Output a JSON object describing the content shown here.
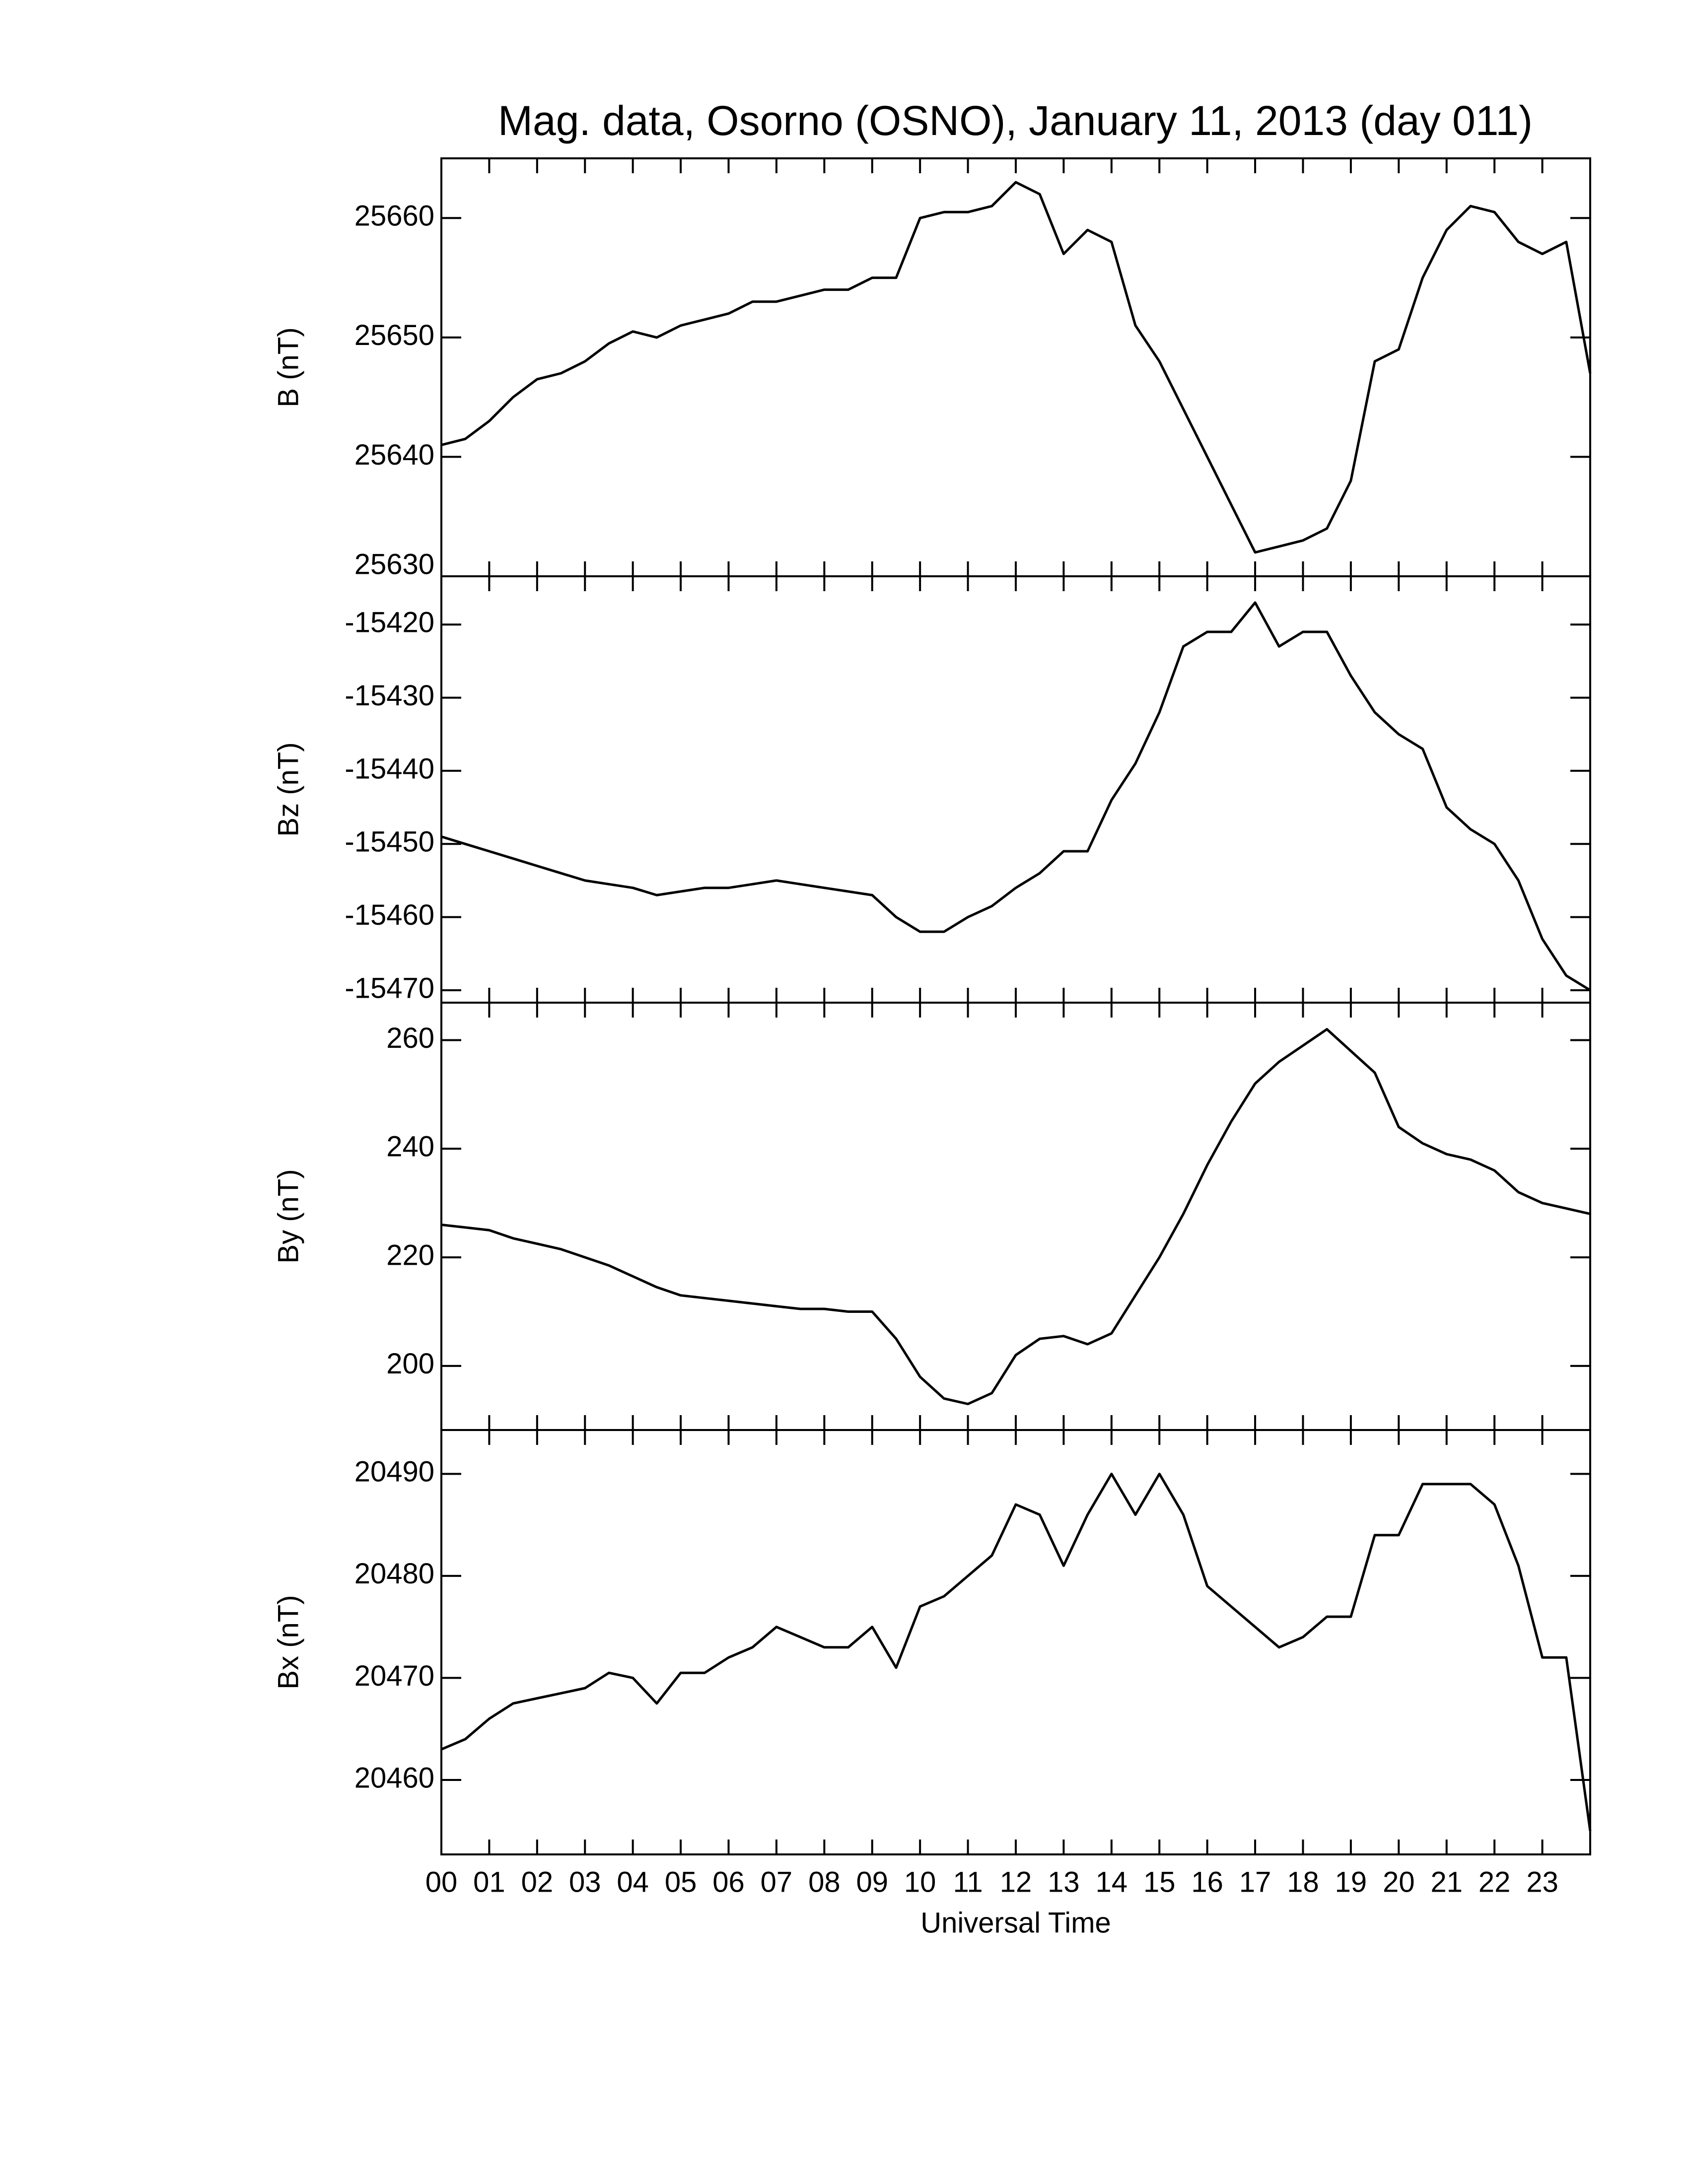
{
  "chart_data": [
    {
      "type": "line",
      "title": "Mag. data, Osorno (OSNO), January 11, 2013 (day 011)",
      "ylabel": "B (nT)",
      "color": "#000000",
      "x": [
        0,
        0.5,
        1,
        1.5,
        2,
        2.5,
        3,
        3.5,
        4,
        4.5,
        5,
        5.5,
        6,
        6.5,
        7,
        7.5,
        8,
        8.5,
        9,
        9.5,
        10,
        10.5,
        11,
        11.5,
        12,
        12.5,
        13,
        13.5,
        14,
        14.5,
        15,
        15.5,
        16,
        16.5,
        17,
        17.5,
        18,
        18.5,
        19,
        19.5,
        20,
        20.5,
        21,
        21.5,
        22,
        22.5,
        23,
        23.5,
        24
      ],
      "values": [
        25641,
        25641.5,
        25643,
        25645,
        25646.5,
        25647,
        25648,
        25649.5,
        25650.5,
        25650,
        25651,
        25651.5,
        25652,
        25653,
        25653,
        25653.5,
        25654,
        25654,
        25655,
        25655,
        25660,
        25660.5,
        25660.5,
        25661,
        25663,
        25662,
        25657,
        25659,
        25658,
        25651,
        25648,
        25644,
        25640,
        25636,
        25632,
        25632.5,
        25633,
        25634,
        25638,
        25648,
        25649,
        25655,
        25659,
        25661,
        25660.5,
        25658,
        25657,
        25658,
        25647
      ],
      "xlim": [
        0,
        24
      ],
      "xticks": [
        {
          "value": 0,
          "label": "00"
        },
        {
          "value": 1,
          "label": "01"
        },
        {
          "value": 2,
          "label": "02"
        },
        {
          "value": 3,
          "label": "03"
        },
        {
          "value": 4,
          "label": "04"
        },
        {
          "value": 5,
          "label": "05"
        },
        {
          "value": 6,
          "label": "06"
        },
        {
          "value": 7,
          "label": "07"
        },
        {
          "value": 8,
          "label": "08"
        },
        {
          "value": 9,
          "label": "09"
        },
        10,
        11,
        12,
        13,
        14,
        15,
        16,
        17,
        18,
        19,
        20,
        21,
        22,
        23
      ],
      "ylim": [
        25630,
        25665
      ],
      "yticks": [
        25630,
        25640,
        25650,
        25660
      ]
    },
    {
      "type": "line",
      "ylabel": "Bz (nT)",
      "color": "#000000",
      "x": [
        0,
        0.5,
        1,
        1.5,
        2,
        2.5,
        3,
        3.5,
        4,
        4.5,
        5,
        5.5,
        6,
        6.5,
        7,
        7.5,
        8,
        8.5,
        9,
        9.5,
        10,
        10.5,
        11,
        11.5,
        12,
        12.5,
        13,
        13.5,
        14,
        14.5,
        15,
        15.5,
        16,
        16.5,
        17,
        17.5,
        18,
        18.5,
        19,
        19.5,
        20,
        20.5,
        21,
        21.5,
        22,
        22.5,
        23,
        23.5,
        24
      ],
      "values": [
        -15449,
        -15450,
        -15451,
        -15452,
        -15453,
        -15454,
        -15455,
        -15455.5,
        -15456,
        -15457,
        -15456.5,
        -15456,
        -15456,
        -15455.5,
        -15455,
        -15455.5,
        -15456,
        -15456.5,
        -15457,
        -15460,
        -15462,
        -15462,
        -15460,
        -15458.5,
        -15456,
        -15454,
        -15451,
        -15451,
        -15444,
        -15439,
        -15432,
        -15423,
        -15421,
        -15421,
        -15417,
        -15423,
        -15421,
        -15421,
        -15427,
        -15432,
        -15435,
        -15437,
        -15445,
        -15448,
        -15450,
        -15455,
        -15463,
        -15468,
        -15470
      ],
      "xlim": [
        0,
        24
      ],
      "xticks": [
        {
          "value": 0,
          "label": "00"
        },
        {
          "value": 1,
          "label": "01"
        },
        {
          "value": 2,
          "label": "02"
        },
        {
          "value": 3,
          "label": "03"
        },
        {
          "value": 4,
          "label": "04"
        },
        {
          "value": 5,
          "label": "05"
        },
        {
          "value": 6,
          "label": "06"
        },
        {
          "value": 7,
          "label": "07"
        },
        {
          "value": 8,
          "label": "08"
        },
        {
          "value": 9,
          "label": "09"
        },
        10,
        11,
        12,
        13,
        14,
        15,
        16,
        17,
        18,
        19,
        20,
        21,
        22,
        23
      ],
      "ylim": [
        -15471.7,
        -15413.4
      ],
      "yticks": [
        -15470,
        -15460,
        -15450,
        -15440,
        -15430,
        -15420
      ]
    },
    {
      "type": "line",
      "ylabel": "By (nT)",
      "color": "#000000",
      "x": [
        0,
        0.5,
        1,
        1.5,
        2,
        2.5,
        3,
        3.5,
        4,
        4.5,
        5,
        5.5,
        6,
        6.5,
        7,
        7.5,
        8,
        8.5,
        9,
        9.5,
        10,
        10.5,
        11,
        11.5,
        12,
        12.5,
        13,
        13.5,
        14,
        14.5,
        15,
        15.5,
        16,
        16.5,
        17,
        17.5,
        18,
        18.5,
        19,
        19.5,
        20,
        20.5,
        21,
        21.5,
        22,
        22.5,
        23,
        23.5,
        24
      ],
      "values": [
        226,
        225.5,
        225,
        223.5,
        222.5,
        221.5,
        220,
        218.5,
        216.5,
        214.5,
        213,
        212.5,
        212,
        211.5,
        211,
        210.5,
        210.5,
        210,
        210,
        205,
        198,
        194,
        193,
        195,
        202,
        205,
        205.5,
        204,
        206,
        213,
        220,
        228,
        237,
        245,
        252,
        256,
        259,
        262,
        258,
        254,
        244,
        241,
        239,
        238,
        236,
        232,
        230,
        229,
        228
      ],
      "xlim": [
        0,
        24
      ],
      "xticks": [
        {
          "value": 0,
          "label": "00"
        },
        {
          "value": 1,
          "label": "01"
        },
        {
          "value": 2,
          "label": "02"
        },
        {
          "value": 3,
          "label": "03"
        },
        {
          "value": 4,
          "label": "04"
        },
        {
          "value": 5,
          "label": "05"
        },
        {
          "value": 6,
          "label": "06"
        },
        {
          "value": 7,
          "label": "07"
        },
        {
          "value": 8,
          "label": "08"
        },
        {
          "value": 9,
          "label": "09"
        },
        10,
        11,
        12,
        13,
        14,
        15,
        16,
        17,
        18,
        19,
        20,
        21,
        22,
        23
      ],
      "ylim": [
        188.2,
        266.9
      ],
      "yticks": [
        200,
        220,
        240,
        260
      ]
    },
    {
      "type": "line",
      "ylabel": "Bx (nT)",
      "xlabel": "Universal Time",
      "color": "#000000",
      "x": [
        0,
        0.5,
        1,
        1.5,
        2,
        2.5,
        3,
        3.5,
        4,
        4.5,
        5,
        5.5,
        6,
        6.5,
        7,
        7.5,
        8,
        8.5,
        9,
        9.5,
        10,
        10.5,
        11,
        11.5,
        12,
        12.5,
        13,
        13.5,
        14,
        14.5,
        15,
        15.5,
        16,
        16.5,
        17,
        17.5,
        18,
        18.5,
        19,
        19.5,
        20,
        20.5,
        21,
        21.5,
        22,
        22.5,
        23,
        23.5,
        24
      ],
      "values": [
        20463,
        20464,
        20466,
        20467.5,
        20468,
        20468.5,
        20469,
        20470.5,
        20470,
        20467.5,
        20470.5,
        20470.5,
        20472,
        20473,
        20475,
        20474,
        20473,
        20473,
        20475,
        20471,
        20477,
        20478,
        20480,
        20482,
        20487,
        20486,
        20481,
        20486,
        20490,
        20486,
        20490,
        20486,
        20479,
        20477,
        20475,
        20473,
        20474,
        20476,
        20476,
        20484,
        20484,
        20489,
        20489,
        20489,
        20487,
        20481,
        20472,
        20472,
        20455
      ],
      "xlim": [
        0,
        24
      ],
      "xticks": [
        {
          "value": 0,
          "label": "00"
        },
        {
          "value": 1,
          "label": "01"
        },
        {
          "value": 2,
          "label": "02"
        },
        {
          "value": 3,
          "label": "03"
        },
        {
          "value": 4,
          "label": "04"
        },
        {
          "value": 5,
          "label": "05"
        },
        {
          "value": 6,
          "label": "06"
        },
        {
          "value": 7,
          "label": "07"
        },
        {
          "value": 8,
          "label": "08"
        },
        {
          "value": 9,
          "label": "09"
        },
        10,
        11,
        12,
        13,
        14,
        15,
        16,
        17,
        18,
        19,
        20,
        21,
        22,
        23
      ],
      "ylim": [
        20452.7,
        20494.3
      ],
      "yticks": [
        20460,
        20470,
        20480,
        20490
      ]
    }
  ]
}
